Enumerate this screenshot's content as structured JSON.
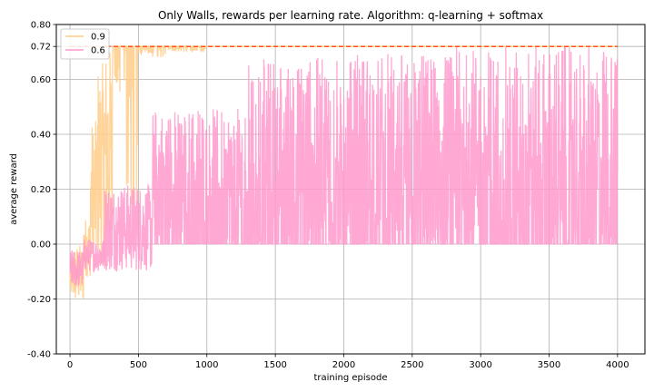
{
  "chart_data": {
    "type": "line",
    "title": "Only Walls, rewards per learning rate. Algorithm: q-learning + softmax",
    "xlabel": "training episode",
    "ylabel": "average reward",
    "xlim": [
      -100,
      4200
    ],
    "ylim": [
      -0.4,
      0.8
    ],
    "xticks": [
      0,
      500,
      1000,
      1500,
      2000,
      2500,
      3000,
      3500,
      4000
    ],
    "yticks": [
      -0.4,
      -0.2,
      0.0,
      0.2,
      0.4,
      0.6,
      0.72,
      0.8
    ],
    "ytick_labels": [
      "-0.40",
      "-0.20",
      "0.00",
      "0.20",
      "0.40",
      "0.60",
      "0.72",
      "0.80"
    ],
    "grid": true,
    "legend_position": "top-left",
    "reference_line": {
      "y": 0.72,
      "color": "#ff4500",
      "style": "dashed"
    },
    "series": [
      {
        "name": "0.9",
        "color": "#ffcc88",
        "segments": [
          {
            "x_start": 0,
            "x_end": 20,
            "min": -0.2,
            "max": -0.05
          },
          {
            "x_start": 20,
            "x_end": 100,
            "min": -0.22,
            "max": 0.0
          },
          {
            "x_start": 100,
            "x_end": 150,
            "min": -0.12,
            "max": 0.1
          },
          {
            "x_start": 150,
            "x_end": 200,
            "min": -0.1,
            "max": 0.45
          },
          {
            "x_start": 200,
            "x_end": 250,
            "min": -0.08,
            "max": 0.66
          },
          {
            "x_start": 250,
            "x_end": 310,
            "min": -0.05,
            "max": 0.72
          },
          {
            "x_start": 310,
            "x_end": 400,
            "min": 0.55,
            "max": 0.72
          },
          {
            "x_start": 400,
            "x_end": 500,
            "min": 0.0,
            "max": 0.72
          },
          {
            "x_start": 500,
            "x_end": 700,
            "min": 0.68,
            "max": 0.72
          },
          {
            "x_start": 700,
            "x_end": 1000,
            "min": 0.7,
            "max": 0.72
          },
          {
            "x_start": 1000,
            "x_end": 4000,
            "min": 0.72,
            "max": 0.72
          }
        ]
      },
      {
        "name": "0.6",
        "color": "#ff99cc",
        "segments": [
          {
            "x_start": 0,
            "x_end": 100,
            "min": -0.16,
            "max": -0.02
          },
          {
            "x_start": 100,
            "x_end": 250,
            "min": -0.1,
            "max": 0.02
          },
          {
            "x_start": 250,
            "x_end": 600,
            "min": -0.1,
            "max": 0.22
          },
          {
            "x_start": 600,
            "x_end": 1300,
            "min": 0.0,
            "max": 0.5
          },
          {
            "x_start": 1300,
            "x_end": 2000,
            "min": 0.0,
            "max": 0.68
          },
          {
            "x_start": 2000,
            "x_end": 2800,
            "min": 0.0,
            "max": 0.7
          },
          {
            "x_start": 2800,
            "x_end": 4000,
            "min": 0.0,
            "max": 0.72
          }
        ]
      }
    ]
  }
}
